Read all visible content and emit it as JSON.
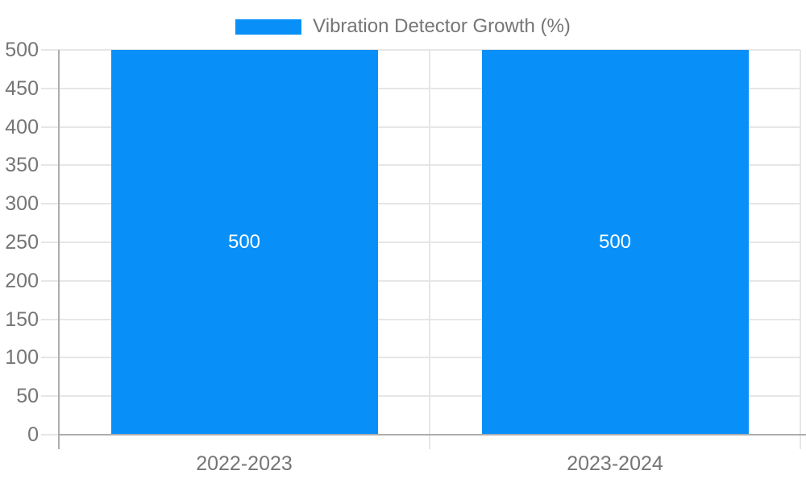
{
  "chart_data": {
    "type": "bar",
    "title": "Vibration Detector Growth (%)",
    "categories": [
      "2022-2023",
      "2023-2024"
    ],
    "values": [
      500,
      500
    ],
    "bar_labels": [
      "500",
      "500"
    ],
    "y_ticks": [
      0,
      50,
      100,
      150,
      200,
      250,
      300,
      350,
      400,
      450,
      500
    ],
    "ylim": [
      0,
      500
    ],
    "xlabel": "",
    "ylabel": "",
    "grid": "horizontal",
    "legend_position": "top-center",
    "colors": {
      "bar": "#0990f8",
      "gridline": "#e6e6e6",
      "axis_line": "#adadad",
      "tick_label": "#757575",
      "bar_label": "#ffffff",
      "background": "#ffffff"
    }
  }
}
